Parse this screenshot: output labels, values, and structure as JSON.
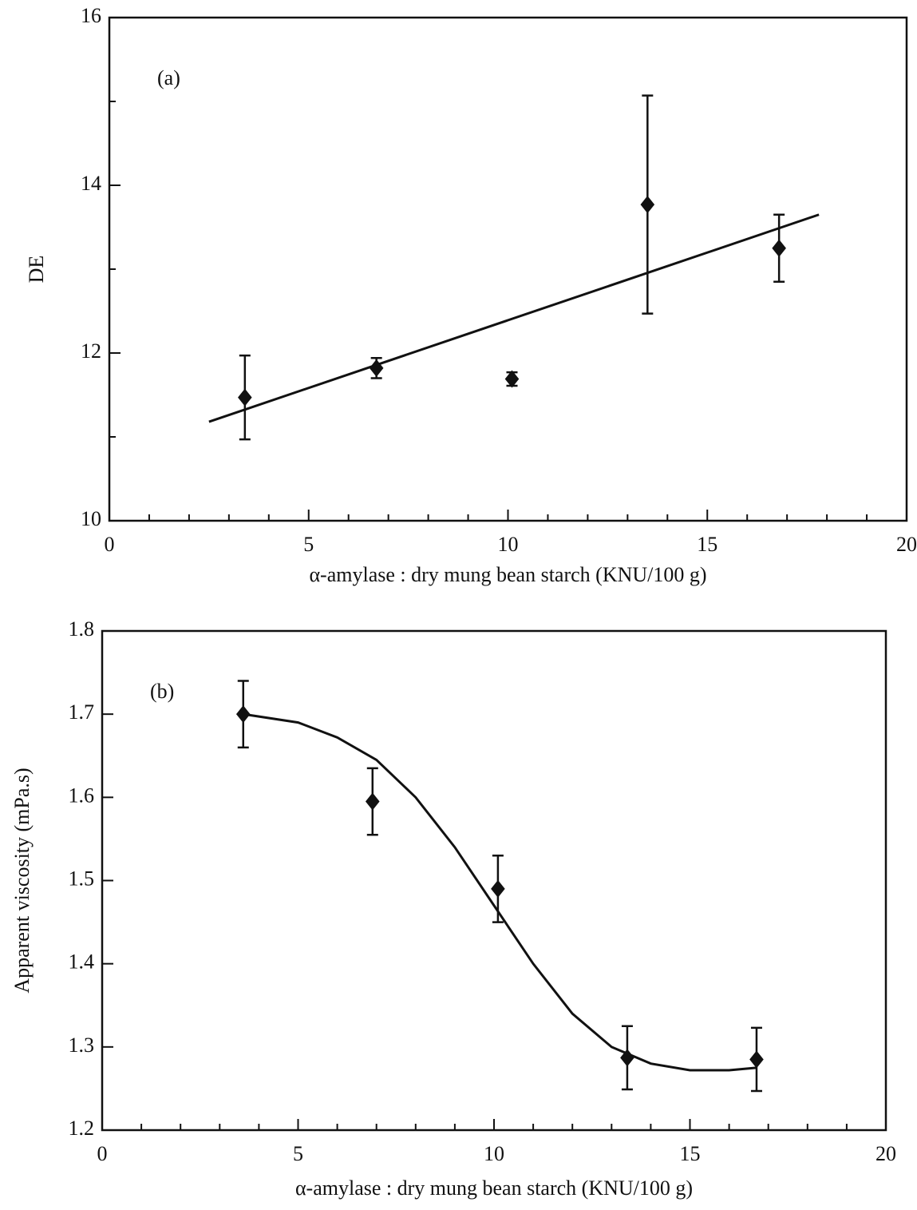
{
  "chart_data": [
    {
      "type": "scatter",
      "panel_label": "(a)",
      "x_label": "α-amylase : dry  mung bean starch (KNU/100 g)",
      "y_label": "DE",
      "color": "#111111",
      "x": [
        3.4,
        6.7,
        10.1,
        13.5,
        16.8
      ],
      "values": [
        11.47,
        11.82,
        11.69,
        13.77,
        13.25
      ],
      "errors": [
        0.5,
        0.12,
        0.08,
        1.3,
        0.4
      ],
      "fit_x": [
        2.5,
        17.8
      ],
      "fit_values": [
        11.18,
        13.65
      ],
      "xlim": [
        0,
        20
      ],
      "xticks": [
        0,
        5,
        10,
        15,
        20
      ],
      "x_minor_ticks": [
        1,
        2,
        3,
        4,
        6,
        7,
        8,
        9,
        11,
        12,
        13,
        14,
        16,
        17,
        18,
        19
      ],
      "ylim": [
        10,
        16
      ],
      "yticks": [
        10,
        12,
        14,
        16
      ],
      "y_minor_ticks": [
        11,
        13,
        15
      ]
    },
    {
      "type": "scatter",
      "panel_label": "(b)",
      "x_label": "α-amylase : dry  mung bean starch (KNU/100 g)",
      "y_label": "Apparent viscosity (mPa.s)",
      "color": "#111111",
      "x": [
        3.6,
        6.9,
        10.1,
        13.4,
        16.7
      ],
      "values": [
        1.7,
        1.595,
        1.49,
        1.287,
        1.285
      ],
      "errors": [
        0.04,
        0.04,
        0.04,
        0.038,
        0.038
      ],
      "fit_x": [
        3.6,
        5,
        6,
        7,
        8,
        9,
        10,
        11,
        12,
        13,
        14,
        15,
        16,
        16.7
      ],
      "fit_values": [
        1.7,
        1.69,
        1.672,
        1.645,
        1.6,
        1.54,
        1.47,
        1.4,
        1.34,
        1.3,
        1.28,
        1.272,
        1.272,
        1.275
      ],
      "xlim": [
        0,
        20
      ],
      "xticks": [
        0,
        5,
        10,
        15,
        20
      ],
      "x_minor_ticks": [
        1,
        2,
        3,
        4,
        6,
        7,
        8,
        9,
        11,
        12,
        13,
        14,
        16,
        17,
        18,
        19
      ],
      "ylim": [
        1.2,
        1.8
      ],
      "yticks": [
        1.2,
        1.3,
        1.4,
        1.5,
        1.6,
        1.7,
        1.8
      ]
    }
  ]
}
